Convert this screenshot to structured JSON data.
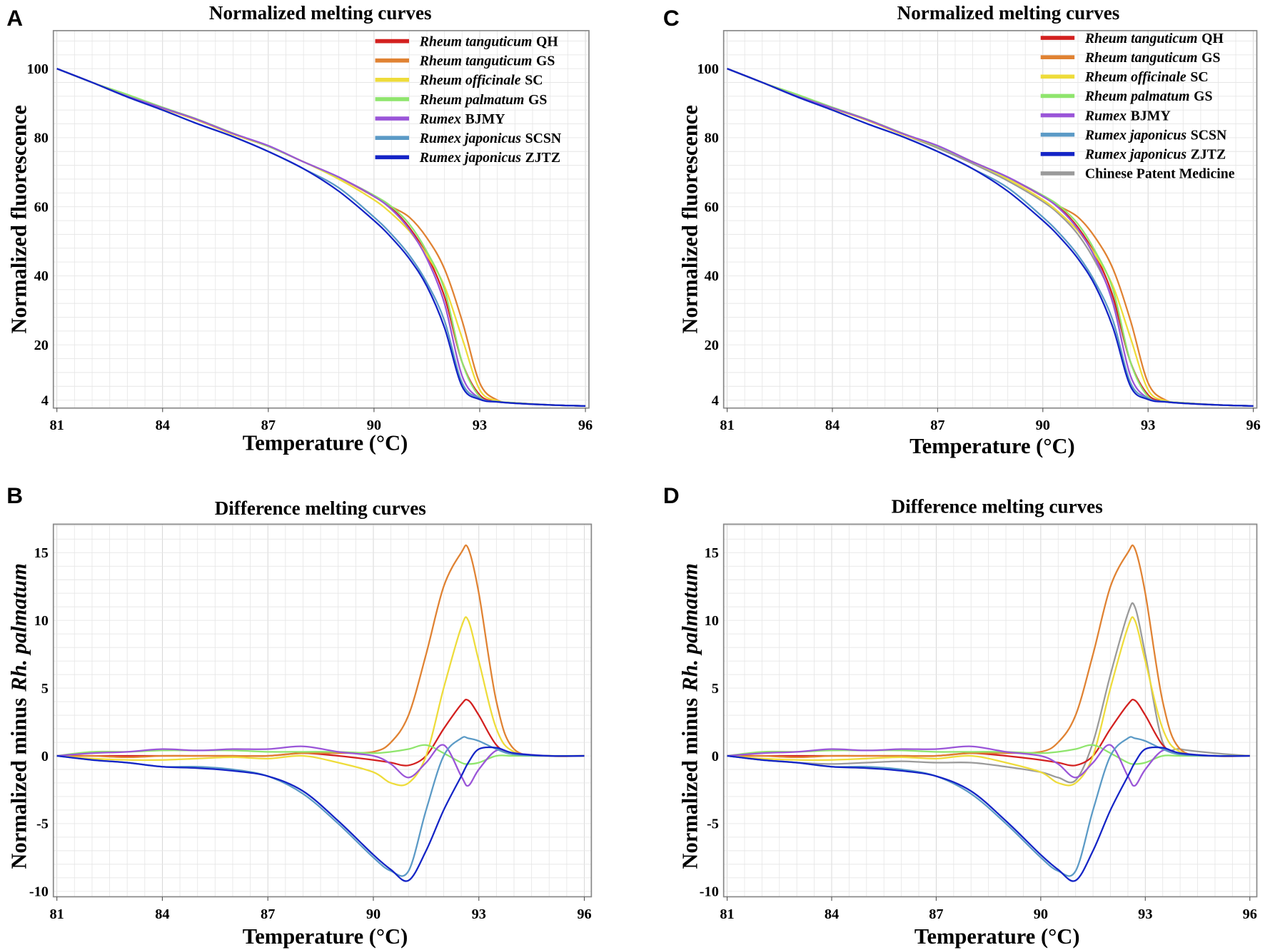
{
  "panel_labels": [
    "A",
    "B",
    "C",
    "D"
  ],
  "colors": {
    "Rheum tanguticum QH": "#d3201f",
    "Rheum tanguticum GS": "#e08232",
    "Rheum officinale SC": "#eedc3a",
    "Rheum palmatum GS": "#8fe56d",
    "Rumex BJMY": "#9a55d8",
    "Rumex japonicus SCSN": "#5b9ac6",
    "Rumex japonicus ZJTZ": "#1424c6",
    "Chinese Patent Medicine": "#9a9a9a"
  },
  "chart_data": [
    {
      "type": "line",
      "panel": "A",
      "title": "Normalized melting curves",
      "xlabel": "Temperature (°C)",
      "ylabel": "Normalized fluorescence",
      "xlim": [
        80.9,
        96.1
      ],
      "ylim": [
        1.7,
        111
      ],
      "xticks": [
        "81",
        "84",
        "87",
        "90",
        "93",
        "96"
      ],
      "yticks": [
        "100",
        "80",
        "60",
        "40",
        "20",
        "4"
      ],
      "grid": true,
      "legend_position": "top-right",
      "x": [
        81,
        82,
        83,
        84,
        85,
        86,
        87,
        88,
        89,
        90,
        90.5,
        91,
        91.5,
        92,
        92.5,
        93,
        93.5,
        94,
        95,
        96
      ],
      "series": [
        {
          "name": "Rheum tanguticum QH",
          "italic": "Rheum tanguticum",
          "suffix": "QH",
          "values": [
            100,
            96,
            92,
            88.5,
            85,
            81,
            77.5,
            73,
            68.5,
            63,
            59.5,
            54,
            46,
            34,
            15,
            5.5,
            3.6,
            3.2,
            2.6,
            2.3
          ]
        },
        {
          "name": "Rheum tanguticum GS",
          "italic": "Rheum tanguticum",
          "suffix": "GS",
          "values": [
            100,
            96,
            92,
            88.5,
            85,
            81,
            77.5,
            73,
            68.5,
            63,
            60,
            57,
            51,
            42,
            27,
            9,
            4,
            3.2,
            2.6,
            2.3
          ]
        },
        {
          "name": "Rheum officinale SC",
          "italic": "Rheum officinale",
          "suffix": "SC",
          "values": [
            100,
            96,
            92,
            88.5,
            85,
            81,
            77.5,
            73,
            68,
            62,
            58,
            53,
            46,
            37,
            22,
            7,
            3.8,
            3.2,
            2.6,
            2.3
          ]
        },
        {
          "name": "Rheum palmatum GS",
          "italic": "Rheum palmatum",
          "suffix": "GS",
          "values": [
            100,
            96,
            92.5,
            88.8,
            85.3,
            81.3,
            77.5,
            73,
            68.5,
            63.3,
            60,
            55,
            47,
            36,
            15,
            5,
            3.6,
            3.2,
            2.6,
            2.3
          ]
        },
        {
          "name": "Rumex BJMY",
          "italic": "Rumex",
          "suffix": "BJMY",
          "values": [
            100,
            96,
            92,
            88.6,
            85.2,
            81.2,
            77.7,
            73,
            68.6,
            63,
            59.2,
            53.5,
            45,
            32,
            11,
            4.5,
            3.5,
            3.1,
            2.6,
            2.3
          ]
        },
        {
          "name": "Rumex japonicus SCSN",
          "italic": "Rumex japonicus",
          "suffix": "SCSN",
          "values": [
            100,
            96,
            91.8,
            88,
            84,
            80.3,
            76,
            71,
            65.5,
            57,
            52,
            46,
            38,
            27,
            9,
            4.5,
            3.5,
            3.1,
            2.6,
            2.3
          ]
        },
        {
          "name": "Rumex japonicus ZJTZ",
          "italic": "Rumex japonicus",
          "suffix": "ZJTZ",
          "values": [
            100,
            96,
            91.8,
            88,
            84,
            80.3,
            76,
            71,
            64.5,
            56,
            51,
            45,
            37,
            25,
            8,
            4.2,
            3.5,
            3.1,
            2.6,
            2.3
          ]
        }
      ]
    },
    {
      "type": "line",
      "panel": "B",
      "title": "Difference melting curves",
      "xlabel": "Temperature (°C)",
      "ylabel": "Normalized minus",
      "ylabel_italic": "Rh. palmatum",
      "xlim": [
        80.9,
        96.2
      ],
      "ylim": [
        -10.4,
        17.1
      ],
      "xticks": [
        "81",
        "84",
        "87",
        "90",
        "93",
        "96"
      ],
      "yticks": [
        "15",
        "10",
        "5",
        "0",
        "-5",
        "-10"
      ],
      "grid": true,
      "x": [
        81,
        82,
        83,
        84,
        85,
        86,
        87,
        88,
        89,
        90,
        90.5,
        91,
        91.5,
        92,
        92.5,
        92.7,
        93,
        93.5,
        94,
        95,
        96
      ],
      "series": [
        {
          "name": "Rheum tanguticum QH",
          "values": [
            0,
            0,
            0,
            0,
            0,
            0,
            0,
            0.2,
            0,
            -0.3,
            -0.5,
            -0.7,
            0,
            2,
            3.8,
            4.1,
            3,
            0.8,
            0.1,
            0,
            0
          ]
        },
        {
          "name": "Rheum tanguticum GS",
          "values": [
            0,
            0,
            -0.1,
            0,
            0,
            0,
            0,
            0.2,
            0.2,
            0.3,
            1,
            3,
            7.5,
            12.5,
            15,
            15.3,
            12,
            4,
            0.5,
            0,
            0
          ]
        },
        {
          "name": "Rheum officinale SC",
          "values": [
            0,
            -0.2,
            -0.3,
            -0.3,
            -0.2,
            -0.1,
            -0.2,
            0,
            -0.5,
            -1.2,
            -2,
            -2,
            0,
            5,
            9.5,
            10,
            7,
            2,
            0.3,
            0,
            0
          ]
        },
        {
          "name": "Rheum palmatum GS",
          "values": [
            0,
            0.3,
            0.3,
            0.4,
            0.4,
            0.4,
            0.3,
            0.3,
            0.3,
            0.2,
            0.3,
            0.5,
            0.8,
            0.2,
            -0.5,
            -0.6,
            -0.5,
            0,
            0,
            0,
            0
          ]
        },
        {
          "name": "Rumex BJMY",
          "values": [
            0,
            0.2,
            0.3,
            0.5,
            0.4,
            0.5,
            0.5,
            0.7,
            0.3,
            0,
            -0.6,
            -1.6,
            -0.5,
            0.8,
            -1.5,
            -2.2,
            -1,
            0.4,
            0.2,
            0,
            0
          ]
        },
        {
          "name": "Rumex japonicus SCSN",
          "values": [
            0,
            -0.3,
            -0.5,
            -0.8,
            -0.8,
            -1,
            -1.5,
            -2.8,
            -5,
            -7.5,
            -8.5,
            -8.5,
            -4,
            0,
            1.3,
            1.3,
            1.1,
            0.5,
            0.1,
            0,
            0
          ]
        },
        {
          "name": "Rumex japonicus ZJTZ",
          "values": [
            0,
            -0.3,
            -0.5,
            -0.8,
            -0.9,
            -1.1,
            -1.5,
            -2.6,
            -4.8,
            -7.3,
            -8.4,
            -9.2,
            -7,
            -4,
            -1.5,
            -0.5,
            0.5,
            0.6,
            0.2,
            0,
            0
          ]
        }
      ]
    },
    {
      "type": "line",
      "panel": "C",
      "title": "Normalized melting curves",
      "xlabel": "Temperature (°C)",
      "ylabel": "Normalized fluorescence",
      "xlim": [
        80.9,
        96.1
      ],
      "ylim": [
        1.7,
        111
      ],
      "xticks": [
        "81",
        "84",
        "87",
        "90",
        "93",
        "96"
      ],
      "yticks": [
        "100",
        "80",
        "60",
        "40",
        "20",
        "4"
      ],
      "grid": true,
      "legend_position": "top-right",
      "x": [
        81,
        82,
        83,
        84,
        85,
        86,
        87,
        88,
        89,
        90,
        90.5,
        91,
        91.5,
        92,
        92.5,
        93,
        93.5,
        94,
        95,
        96
      ],
      "series": [
        {
          "name": "Rheum tanguticum QH",
          "italic": "Rheum tanguticum",
          "suffix": "QH",
          "values": [
            100,
            96,
            92,
            88.5,
            85,
            81,
            77.5,
            73,
            68.5,
            63,
            59.5,
            54,
            46,
            34,
            15,
            5.5,
            3.6,
            3.2,
            2.6,
            2.3
          ]
        },
        {
          "name": "Rheum tanguticum GS",
          "italic": "Rheum tanguticum",
          "suffix": "GS",
          "values": [
            100,
            96,
            92,
            88.5,
            85,
            81,
            77.5,
            73,
            68.5,
            63,
            60,
            57,
            51,
            42,
            27,
            9,
            4,
            3.2,
            2.6,
            2.3
          ]
        },
        {
          "name": "Rheum officinale SC",
          "italic": "Rheum officinale",
          "suffix": "SC",
          "values": [
            100,
            96,
            92,
            88.5,
            85,
            81,
            77.5,
            73,
            68,
            62,
            58,
            53,
            46,
            37,
            22,
            7,
            3.8,
            3.2,
            2.6,
            2.3
          ]
        },
        {
          "name": "Rheum palmatum GS",
          "italic": "Rheum palmatum",
          "suffix": "GS",
          "values": [
            100,
            96,
            92.5,
            88.8,
            85.3,
            81.3,
            77.5,
            73,
            68.5,
            63.3,
            60,
            55,
            47,
            36,
            15,
            5,
            3.6,
            3.2,
            2.6,
            2.3
          ]
        },
        {
          "name": "Rumex BJMY",
          "italic": "Rumex",
          "suffix": "BJMY",
          "values": [
            100,
            96,
            92,
            88.6,
            85.2,
            81.2,
            77.7,
            73,
            68.6,
            63,
            59.2,
            53.5,
            45,
            32,
            11,
            4.5,
            3.5,
            3.1,
            2.6,
            2.3
          ]
        },
        {
          "name": "Rumex japonicus SCSN",
          "italic": "Rumex japonicus",
          "suffix": "SCSN",
          "values": [
            100,
            96,
            91.8,
            88,
            84,
            80.3,
            76,
            71,
            65.5,
            57,
            52,
            46,
            38,
            27,
            9,
            4.5,
            3.5,
            3.1,
            2.6,
            2.3
          ]
        },
        {
          "name": "Rumex japonicus ZJTZ",
          "italic": "Rumex japonicus",
          "suffix": "ZJTZ",
          "values": [
            100,
            96,
            91.8,
            88,
            84,
            80.3,
            76,
            71,
            64.5,
            56,
            51,
            45,
            37,
            25,
            8,
            4.2,
            3.5,
            3.1,
            2.6,
            2.3
          ]
        },
        {
          "name": "Chinese Patent Medicine",
          "italic": "",
          "suffix": "Chinese Patent Medicine",
          "values": [
            100,
            96,
            92,
            88.5,
            85,
            81,
            77,
            72.5,
            67.5,
            61.5,
            57.5,
            52,
            44,
            33,
            15,
            5.5,
            3.7,
            3.2,
            2.6,
            2.3
          ]
        }
      ]
    },
    {
      "type": "line",
      "panel": "D",
      "title": "Difference melting curves",
      "xlabel": "Temperature (°C)",
      "ylabel": "Normalized minus",
      "ylabel_italic": "Rh. palmatum",
      "xlim": [
        80.9,
        96.2
      ],
      "ylim": [
        -10.4,
        17.1
      ],
      "xticks": [
        "81",
        "84",
        "87",
        "90",
        "93",
        "96"
      ],
      "yticks": [
        "15",
        "10",
        "5",
        "0",
        "-5",
        "-10"
      ],
      "grid": true,
      "x": [
        81,
        82,
        83,
        84,
        85,
        86,
        87,
        88,
        89,
        90,
        90.5,
        91,
        91.5,
        92,
        92.5,
        92.7,
        93,
        93.5,
        94,
        95,
        96
      ],
      "series": [
        {
          "name": "Rheum tanguticum QH",
          "values": [
            0,
            0,
            0,
            0,
            0,
            0,
            0,
            0.2,
            0,
            -0.3,
            -0.5,
            -0.7,
            0,
            2,
            3.8,
            4.1,
            3,
            0.8,
            0.1,
            0,
            0
          ]
        },
        {
          "name": "Rheum tanguticum GS",
          "values": [
            0,
            0,
            -0.1,
            0,
            0,
            0,
            0,
            0.2,
            0.2,
            0.3,
            1,
            3,
            7.5,
            12.5,
            15,
            15.3,
            12,
            4,
            0.5,
            0,
            0
          ]
        },
        {
          "name": "Rheum officinale SC",
          "values": [
            0,
            -0.2,
            -0.3,
            -0.3,
            -0.2,
            -0.1,
            -0.2,
            0,
            -0.5,
            -1.2,
            -2,
            -2,
            0,
            5,
            9.5,
            10,
            7,
            2,
            0.3,
            0,
            0
          ]
        },
        {
          "name": "Rheum palmatum GS",
          "values": [
            0,
            0.3,
            0.3,
            0.4,
            0.4,
            0.4,
            0.3,
            0.3,
            0.3,
            0.2,
            0.3,
            0.5,
            0.8,
            0.2,
            -0.5,
            -0.6,
            -0.5,
            0,
            0,
            0,
            0
          ]
        },
        {
          "name": "Rumex BJMY",
          "values": [
            0,
            0.2,
            0.3,
            0.5,
            0.4,
            0.5,
            0.5,
            0.7,
            0.3,
            0,
            -0.6,
            -1.6,
            -0.5,
            0.8,
            -1.5,
            -2.2,
            -1,
            0.4,
            0.2,
            0,
            0
          ]
        },
        {
          "name": "Rumex japonicus SCSN",
          "values": [
            0,
            -0.3,
            -0.5,
            -0.8,
            -0.8,
            -1,
            -1.5,
            -2.8,
            -5,
            -7.5,
            -8.5,
            -8.5,
            -4,
            0,
            1.3,
            1.3,
            1.1,
            0.5,
            0.1,
            0,
            0
          ]
        },
        {
          "name": "Rumex japonicus ZJTZ",
          "values": [
            0,
            -0.3,
            -0.5,
            -0.8,
            -0.9,
            -1.1,
            -1.5,
            -2.6,
            -4.8,
            -7.3,
            -8.4,
            -9.2,
            -7,
            -4,
            -1.5,
            -0.5,
            0.5,
            0.6,
            0.2,
            0,
            0
          ]
        },
        {
          "name": "Chinese Patent Medicine",
          "values": [
            0,
            -0.3,
            -0.5,
            -0.6,
            -0.5,
            -0.4,
            -0.5,
            -0.5,
            -0.8,
            -1.2,
            -1.6,
            -1.8,
            1,
            6,
            10.5,
            11,
            7.5,
            1,
            0.5,
            0.2,
            0
          ]
        }
      ]
    }
  ]
}
